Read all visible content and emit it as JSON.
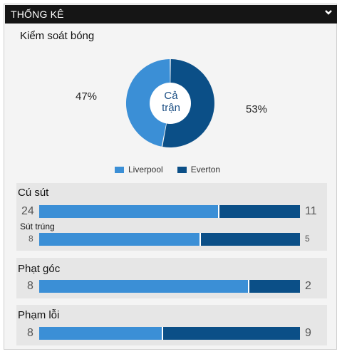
{
  "header": {
    "title": "THỐNG KÊ"
  },
  "possession": {
    "title": "Kiểm soát bóng",
    "home_pct": "47%",
    "away_pct": "53%",
    "home_value": 47,
    "away_value": 53,
    "center_line1": "Cả",
    "center_line2": "trận"
  },
  "legend": {
    "home": "Liverpool",
    "away": "Everton"
  },
  "colors": {
    "home": "#3b8fd6",
    "away": "#0b4f87"
  },
  "stats": {
    "shots": {
      "label": "Cú sút",
      "home": "24",
      "away": "11"
    },
    "shots_on_target": {
      "label": "Sút trúng",
      "home": "8",
      "away": "5"
    },
    "corners": {
      "label": "Phạt góc",
      "home": "8",
      "away": "2"
    },
    "fouls": {
      "label": "Phạm lỗi",
      "home": "8",
      "away": "9"
    }
  }
}
